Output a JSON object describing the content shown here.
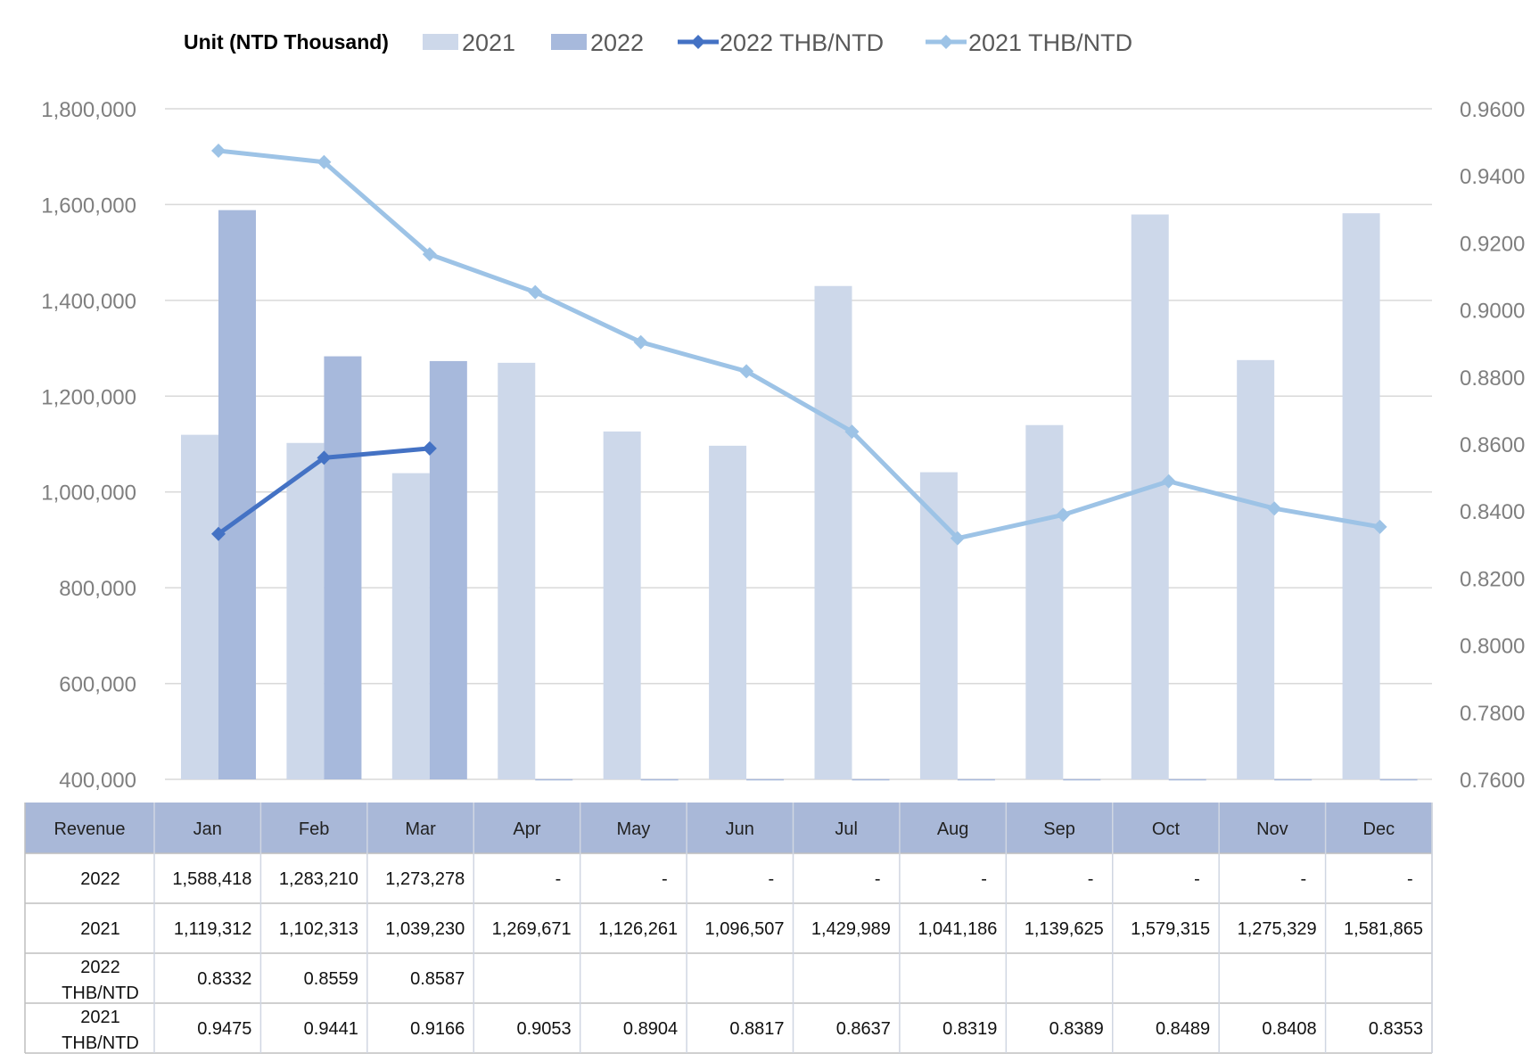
{
  "legend": {
    "unit_label": "Unit (NTD Thousand)",
    "items": [
      "2021",
      "2022",
      "2022 THB/NTD",
      "2021 THB/NTD"
    ]
  },
  "colors": {
    "bar_2021": "#cdd8ea",
    "bar_2022": "#a7b9dc",
    "line_2022": "#4472c4",
    "line_2021": "#9dc3e6",
    "gridline": "#d9d9d9",
    "table_header_bg": "#a9b8d8",
    "table_border": "#bfbfbf"
  },
  "chart_data": {
    "type": "bar",
    "categories": [
      "Jan",
      "Feb",
      "Mar",
      "Apr",
      "May",
      "Jun",
      "Jul",
      "Aug",
      "Sep",
      "Oct",
      "Nov",
      "Dec"
    ],
    "series": [
      {
        "name": "2021",
        "type": "bar",
        "axis": "left",
        "values": [
          1119312,
          1102313,
          1039230,
          1269671,
          1126261,
          1096507,
          1429989,
          1041186,
          1139625,
          1579315,
          1275329,
          1581865
        ]
      },
      {
        "name": "2022",
        "type": "bar",
        "axis": "left",
        "values": [
          1588418,
          1283210,
          1273278,
          null,
          null,
          null,
          null,
          null,
          null,
          null,
          null,
          null
        ]
      },
      {
        "name": "2022 THB/NTD",
        "type": "line",
        "axis": "right",
        "values": [
          0.8332,
          0.8559,
          0.8587,
          null,
          null,
          null,
          null,
          null,
          null,
          null,
          null,
          null
        ]
      },
      {
        "name": "2021 THB/NTD",
        "type": "line",
        "axis": "right",
        "values": [
          0.9475,
          0.9441,
          0.9166,
          0.9053,
          0.8904,
          0.8817,
          0.8637,
          0.8319,
          0.8389,
          0.8489,
          0.8408,
          0.8353
        ]
      }
    ],
    "ylim_left": [
      400000,
      1800000
    ],
    "ylim_right": [
      0.76,
      0.96
    ],
    "left_ticks": [
      "1,800,000",
      "1,600,000",
      "1,400,000",
      "1,200,000",
      "1,000,000",
      "800,000",
      "600,000",
      "400,000"
    ],
    "right_ticks": [
      "0.9600",
      "0.9400",
      "0.9200",
      "0.9000",
      "0.8800",
      "0.8600",
      "0.8400",
      "0.8200",
      "0.8000",
      "0.7800",
      "0.7600"
    ],
    "grid": true,
    "legend_position": "top"
  },
  "table": {
    "header_label": "Revenue",
    "rows": [
      {
        "label": [
          "2022"
        ],
        "cells": [
          "1,588,418",
          "1,283,210",
          "1,273,278",
          "-",
          "-",
          "-",
          "-",
          "-",
          "-",
          "-",
          "-",
          "-"
        ]
      },
      {
        "label": [
          "2021"
        ],
        "cells": [
          "1,119,312",
          "1,102,313",
          "1,039,230",
          "1,269,671",
          "1,126,261",
          "1,096,507",
          "1,429,989",
          "1,041,186",
          "1,139,625",
          "1,579,315",
          "1,275,329",
          "1,581,865"
        ]
      },
      {
        "label": [
          "2022",
          "THB/NTD"
        ],
        "cells": [
          "0.8332",
          "0.8559",
          "0.8587",
          "",
          "",
          "",
          "",
          "",
          "",
          "",
          "",
          ""
        ]
      },
      {
        "label": [
          "2021",
          "THB/NTD"
        ],
        "cells": [
          "0.9475",
          "0.9441",
          "0.9166",
          "0.9053",
          "0.8904",
          "0.8817",
          "0.8637",
          "0.8319",
          "0.8389",
          "0.8489",
          "0.8408",
          "0.8353"
        ]
      }
    ]
  }
}
